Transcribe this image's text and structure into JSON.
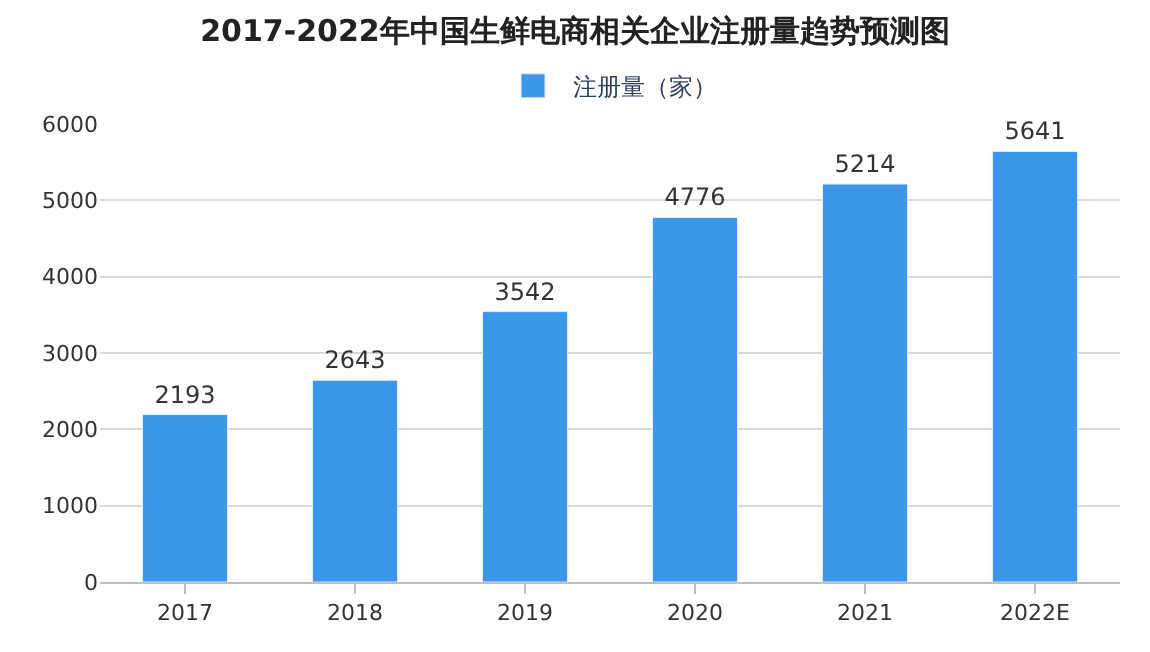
{
  "chart_data": {
    "type": "bar",
    "title": "2017-2022年中国生鲜电商相关企业注册量趋势预测图",
    "categories": [
      "2017",
      "2018",
      "2019",
      "2020",
      "2021",
      "2022E"
    ],
    "series": [
      {
        "name": "注册量（家）",
        "color": "#3a97ea",
        "values": [
          2193,
          2643,
          3542,
          4776,
          5214,
          5641
        ]
      }
    ],
    "ylim": [
      0,
      6000
    ],
    "yticks": [
      0,
      1000,
      2000,
      3000,
      4000,
      5000,
      6000
    ],
    "grid": "y",
    "legend": "top",
    "data_labels": true
  }
}
